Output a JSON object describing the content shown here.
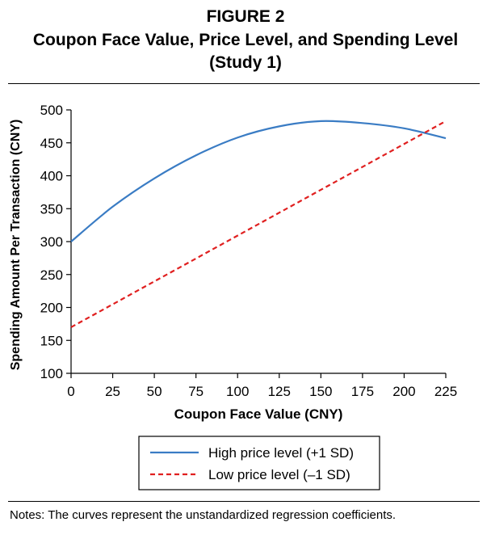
{
  "figure": {
    "label": "FIGURE 2",
    "title": "Coupon Face Value, Price Level, and Spending Level (Study 1)"
  },
  "notes": "Notes: The curves represent the unstandardized regression coefficients.",
  "colors": {
    "high": "#3a7cc4",
    "low": "#e02020"
  },
  "chart_data": {
    "type": "line",
    "xlabel": "Coupon Face Value (CNY)",
    "ylabel": "Spending Amount Per Transaction (CNY)",
    "xlim": [
      0,
      225
    ],
    "ylim": [
      100,
      500
    ],
    "xticks": [
      "0",
      "25",
      "50",
      "75",
      "100",
      "125",
      "150",
      "175",
      "200",
      "225"
    ],
    "yticks": [
      "100",
      "150",
      "200",
      "250",
      "300",
      "350",
      "400",
      "450",
      "500"
    ],
    "grid": false,
    "legend": "bottom-center",
    "series": [
      {
        "name": "High price level (+1 SD)",
        "style": "solid",
        "x": [
          0,
          25,
          50,
          75,
          100,
          125,
          150,
          175,
          200,
          225
        ],
        "y": [
          300,
          353,
          396,
          431,
          458,
          475,
          483,
          480,
          472,
          457
        ]
      },
      {
        "name": "Low price level (–1 SD)",
        "style": "dashed",
        "x": [
          0,
          225
        ],
        "y": [
          170,
          483
        ]
      }
    ]
  }
}
